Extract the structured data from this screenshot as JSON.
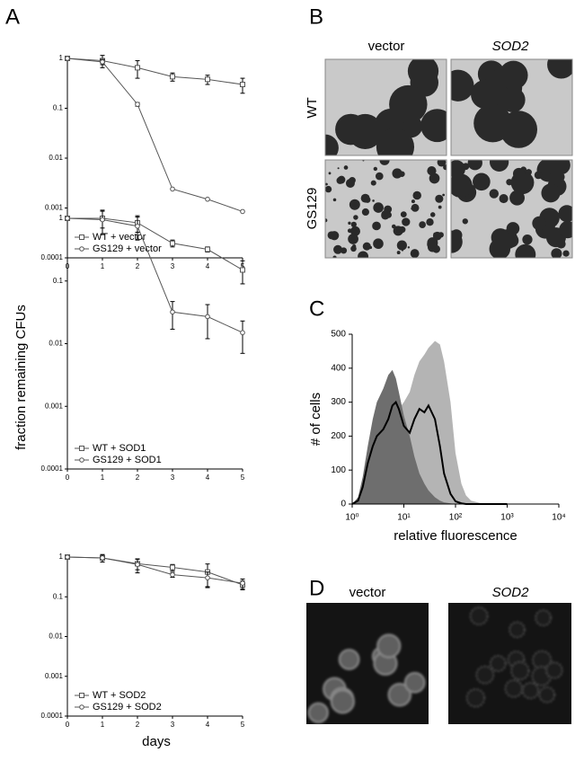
{
  "panel_labels": [
    "A",
    "B",
    "C",
    "D"
  ],
  "panel_a": {
    "y_label": "fraction remaining CFUs",
    "x_label": "days"
  },
  "panel_b": {
    "columns": [
      "vector",
      "SOD2"
    ],
    "rows": [
      "WT",
      "GS129"
    ]
  },
  "panel_d": {
    "columns": [
      "vector",
      "SOD2"
    ]
  },
  "chart_data": [
    {
      "type": "line",
      "log_y": true,
      "legend": "lower left",
      "x": [
        0,
        1,
        2,
        3,
        4,
        5
      ],
      "xlim": [
        0,
        5
      ],
      "xticks": [
        0,
        1,
        2,
        3,
        4,
        5
      ],
      "ylim": [
        0.0001,
        1
      ],
      "yticks": [
        0.0001,
        0.001,
        0.01,
        0.1,
        1
      ],
      "series": [
        {
          "name": "WT + vector",
          "color": "#555555",
          "marker": "square",
          "values": [
            1,
            0.9,
            0.65,
            0.43,
            0.38,
            0.3
          ],
          "errors": [
            0,
            0.25,
            0.25,
            0.08,
            0.08,
            0.1
          ]
        },
        {
          "name": "GS129 + vector",
          "color": "#555555",
          "marker": "circle",
          "values": [
            1,
            0.85,
            0.12,
            0.0024,
            0.0015,
            0.00085
          ],
          "errors": [
            0,
            0.1,
            0.01,
            0,
            0,
            0
          ]
        }
      ]
    },
    {
      "type": "line",
      "log_y": true,
      "legend": "lower left",
      "x": [
        0,
        1,
        2,
        3,
        4,
        5
      ],
      "xlim": [
        0,
        5
      ],
      "xticks": [
        0,
        1,
        2,
        3,
        4,
        5
      ],
      "ylim": [
        0.0001,
        1
      ],
      "yticks": [
        0.0001,
        0.001,
        0.01,
        0.1,
        1
      ],
      "series": [
        {
          "name": "WT + SOD1",
          "color": "#555555",
          "marker": "square",
          "values": [
            1,
            1,
            0.85,
            0.4,
            0.32,
            0.15
          ],
          "errors": [
            0,
            0.3,
            0.25,
            0.05,
            0.03,
            0.06
          ]
        },
        {
          "name": "GS129 + SOD1",
          "color": "#555555",
          "marker": "circle",
          "values": [
            1,
            0.95,
            0.75,
            0.032,
            0.027,
            0.015
          ],
          "errors": [
            0,
            0.4,
            0.3,
            0.015,
            0.015,
            0.008
          ]
        }
      ]
    },
    {
      "type": "line",
      "log_y": true,
      "legend": "lower left",
      "x": [
        0,
        1,
        2,
        3,
        4,
        5
      ],
      "xlim": [
        0,
        5
      ],
      "xticks": [
        0,
        1,
        2,
        3,
        4,
        5
      ],
      "ylim": [
        0.0001,
        1
      ],
      "yticks": [
        0.0001,
        0.001,
        0.01,
        0.1,
        1
      ],
      "series": [
        {
          "name": "WT + SOD2",
          "color": "#555555",
          "marker": "square",
          "values": [
            1,
            0.95,
            0.68,
            0.55,
            0.42,
            0.2
          ],
          "errors": [
            0,
            0.2,
            0.2,
            0.1,
            0.25,
            0.05
          ]
        },
        {
          "name": "GS129 + SOD2",
          "color": "#555555",
          "marker": "circle",
          "values": [
            1,
            0.95,
            0.65,
            0.36,
            0.3,
            0.22
          ],
          "errors": [
            0,
            0.2,
            0.25,
            0.05,
            0.12,
            0.06
          ]
        }
      ]
    },
    {
      "type": "area",
      "log_x": true,
      "x_label": "relative fluorescence",
      "y_label": "# of cells",
      "x": [
        1,
        1.3,
        1.6,
        2,
        2.5,
        3,
        4,
        5,
        6,
        7,
        8,
        10,
        13,
        16,
        20,
        25,
        30,
        40,
        50,
        60,
        80,
        100,
        130,
        160,
        200,
        300,
        500,
        1000
      ],
      "xlim": [
        1,
        10000
      ],
      "xticks": [
        {
          "value": 1,
          "label": "10⁰"
        },
        {
          "value": 10,
          "label": "10¹"
        },
        {
          "value": 100,
          "label": "10²"
        },
        {
          "value": 1000,
          "label": "10³"
        },
        {
          "value": 10000,
          "label": "10⁴"
        }
      ],
      "ylim": [
        0,
        500
      ],
      "yticks": [
        0,
        100,
        200,
        300,
        400,
        500
      ],
      "series": [
        {
          "color": "#b4b4b4",
          "fill": true,
          "values": [
            0,
            5,
            30,
            80,
            140,
            180,
            210,
            240,
            260,
            270,
            280,
            300,
            330,
            380,
            420,
            440,
            460,
            480,
            470,
            420,
            300,
            150,
            60,
            25,
            10,
            3,
            0,
            0
          ]
        },
        {
          "color": "#6e6e6e",
          "fill": true,
          "values": [
            0,
            20,
            80,
            170,
            250,
            300,
            340,
            380,
            395,
            370,
            330,
            260,
            200,
            140,
            90,
            60,
            40,
            20,
            10,
            5,
            2,
            0,
            0,
            0,
            0,
            0,
            0,
            0
          ]
        },
        {
          "color": "#000000",
          "fill": false,
          "values": [
            0,
            10,
            50,
            120,
            170,
            200,
            220,
            250,
            290,
            300,
            280,
            230,
            210,
            250,
            280,
            270,
            290,
            250,
            170,
            90,
            30,
            8,
            2,
            0,
            0,
            0,
            0,
            0
          ]
        }
      ]
    }
  ]
}
